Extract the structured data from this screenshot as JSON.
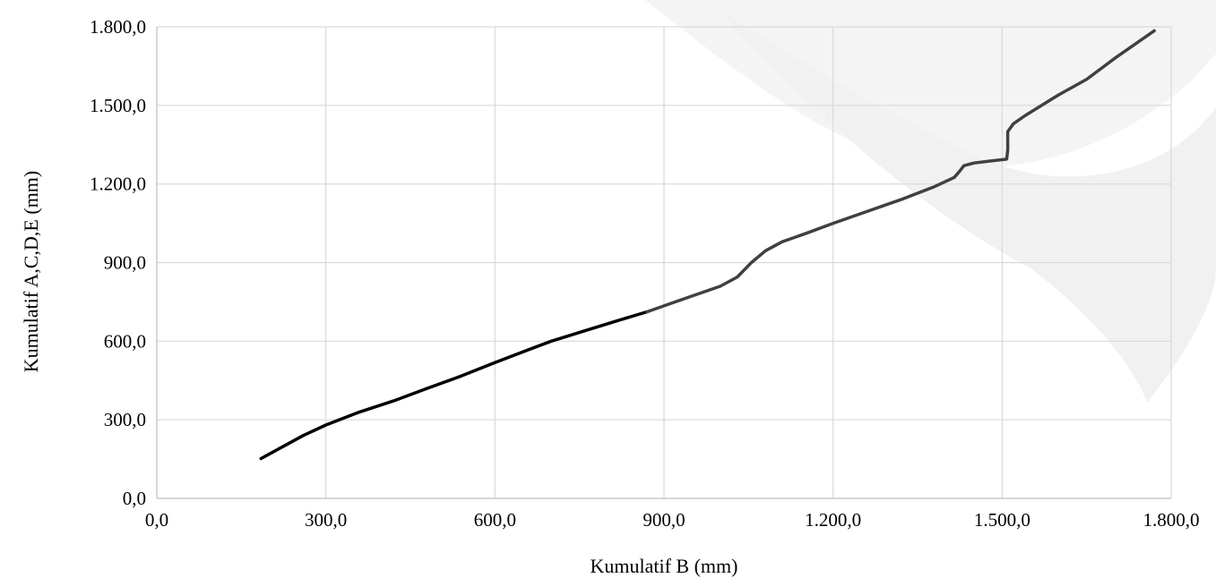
{
  "chart_data": {
    "type": "line",
    "title": "",
    "xlabel": "Kumulatif B (mm)",
    "ylabel": "Kumulatif A,C,D,E (mm)",
    "xlim": [
      0,
      1800
    ],
    "ylim": [
      0,
      1800
    ],
    "x_ticks": [
      0,
      300,
      600,
      900,
      1200,
      1500,
      1800
    ],
    "y_ticks": [
      0,
      300,
      600,
      900,
      1200,
      1500,
      1800
    ],
    "x_tick_labels": [
      "0,0",
      "300,0",
      "600,0",
      "900,0",
      "1.200,0",
      "1.500,0",
      "1.800,0"
    ],
    "y_tick_labels": [
      "0,0",
      "300,0",
      "600,0",
      "900,0",
      "1.200,0",
      "1.500,0",
      "1.800,0"
    ],
    "grid": true,
    "legend": "none",
    "series": [
      {
        "color": "#000000",
        "points": [
          [
            185,
            152
          ],
          [
            260,
            240
          ],
          [
            300,
            280
          ],
          [
            360,
            330
          ],
          [
            420,
            372
          ],
          [
            480,
            420
          ],
          [
            540,
            467
          ],
          [
            600,
            518
          ],
          [
            660,
            568
          ],
          [
            700,
            600
          ],
          [
            760,
            640
          ],
          [
            820,
            680
          ],
          [
            870,
            712
          ]
        ]
      },
      {
        "color": "#404040",
        "points": [
          [
            870,
            712
          ],
          [
            920,
            750
          ],
          [
            960,
            780
          ],
          [
            1000,
            810
          ],
          [
            1030,
            845
          ],
          [
            1055,
            900
          ],
          [
            1080,
            945
          ],
          [
            1110,
            980
          ],
          [
            1150,
            1010
          ],
          [
            1200,
            1050
          ],
          [
            1260,
            1095
          ],
          [
            1320,
            1140
          ],
          [
            1380,
            1190
          ],
          [
            1415,
            1225
          ],
          [
            1425,
            1250
          ],
          [
            1432,
            1270
          ],
          [
            1450,
            1280
          ],
          [
            1480,
            1288
          ],
          [
            1508,
            1295
          ],
          [
            1510,
            1330
          ],
          [
            1510,
            1400
          ],
          [
            1520,
            1430
          ],
          [
            1540,
            1460
          ],
          [
            1600,
            1540
          ],
          [
            1650,
            1600
          ],
          [
            1700,
            1680
          ],
          [
            1770,
            1785
          ]
        ]
      }
    ]
  }
}
